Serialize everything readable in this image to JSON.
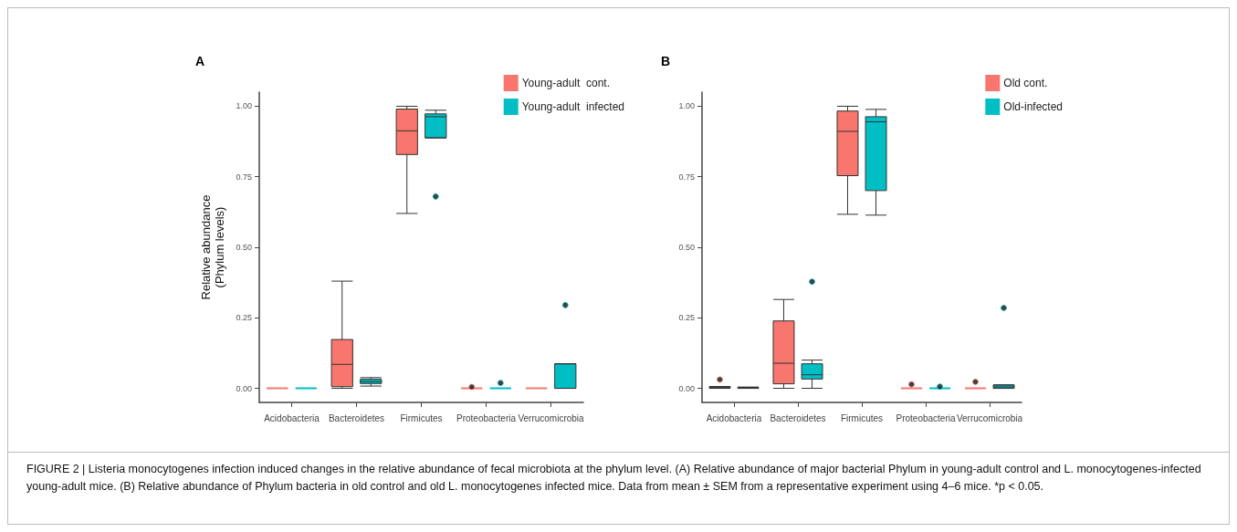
{
  "chart_data": [
    {
      "type": "box",
      "title": "A",
      "ylabel": "Relative abundance\n(Phylum levels)",
      "categories": [
        "Acidobacteria",
        "Bacteroidetes",
        "Firmicutes",
        "Proteobacteria",
        "Verrucomicrobia"
      ],
      "ylim": [
        -0.05,
        1.05
      ],
      "yticks": [
        {
          "value": 0,
          "label": "0.00"
        },
        {
          "value": 0.25,
          "label": "0.25"
        },
        {
          "value": 0.5,
          "label": "0.50"
        },
        {
          "value": 0.75,
          "label": "0.75"
        },
        {
          "value": 1,
          "label": "1.00"
        }
      ],
      "grid": false,
      "legend": "top right",
      "series": [
        {
          "name": "Young-adult  cont.",
          "color": "#f8766d",
          "boxes": [
            {
              "low": 0,
              "q1": 0,
              "median": 0,
              "q3": 0,
              "high": 0
            },
            {
              "low": 0,
              "q1": 0.006,
              "median": 0.085,
              "q3": 0.173,
              "high": 0.38
            },
            {
              "low": 0.62,
              "q1": 0.829,
              "median": 0.913,
              "q3": 0.99,
              "high": 1.0
            },
            {
              "low": 0,
              "q1": 0,
              "median": 0,
              "q3": 0,
              "high": 0,
              "outliers": [
                0.005
              ]
            },
            {
              "low": 0,
              "q1": 0,
              "median": 0,
              "q3": 0,
              "high": 0
            }
          ]
        },
        {
          "name": "Young-adult  infected",
          "color": "#00bfc4",
          "boxes": [
            {
              "low": 0,
              "q1": 0,
              "median": 0,
              "q3": 0,
              "high": 0
            },
            {
              "low": 0.008,
              "q1": 0.017,
              "median": 0.024,
              "q3": 0.032,
              "high": 0.038
            },
            {
              "low": 0.888,
              "q1": 0.888,
              "median": 0.963,
              "q3": 0.973,
              "high": 0.986,
              "outliers": [
                0.68
              ]
            },
            {
              "low": 0,
              "q1": 0,
              "median": 0,
              "q3": 0,
              "high": 0,
              "outliers": [
                0.019
              ]
            },
            {
              "low": 0,
              "q1": 0,
              "median": 0.087,
              "q3": 0.087,
              "high": 0.087,
              "outliers": [
                0.295
              ]
            }
          ]
        }
      ],
      "annotations": [
        "FIGURE 2 | Listeria monocytogenes infection induced changes in the relative abundance of fecal microbiota at the phylum level. (A) Relative abundance of major bacterial Phylum in young-adult control and L. monocytogenes-infected young-adult mice. (B) Relative abundance of Phylum bacteria in old control and old L. monocytogenes infected mice. Data from mean ± SEM from a representative experiment using 4–6 mice. *p < 0.05."
      ]
    },
    {
      "type": "box",
      "title": "B",
      "categories": [
        "Acidobacteria",
        "Bacteroidetes",
        "Firmicutes",
        "Proteobacteria",
        "Verrucomicrobia"
      ],
      "ylim": [
        -0.05,
        1.05
      ],
      "yticks": [
        {
          "value": 0,
          "label": "0.00"
        },
        {
          "value": 0.25,
          "label": "0.25"
        },
        {
          "value": 0.5,
          "label": "0.50"
        },
        {
          "value": 0.75,
          "label": "0.75"
        },
        {
          "value": 1,
          "label": "1.00"
        }
      ],
      "grid": false,
      "legend": "top right",
      "series": [
        {
          "name": "Old cont.",
          "color": "#f8766d",
          "boxes": [
            {
              "low": 0,
              "q1": 0,
              "median": 0.003,
              "q3": 0.006,
              "high": 0.006,
              "outliers": [
                0.031
              ]
            },
            {
              "low": 0,
              "q1": 0.016,
              "median": 0.089,
              "q3": 0.239,
              "high": 0.315
            },
            {
              "low": 0.617,
              "q1": 0.754,
              "median": 0.911,
              "q3": 0.983,
              "high": 1.0
            },
            {
              "low": 0,
              "q1": 0,
              "median": 0,
              "q3": 0,
              "high": 0,
              "outliers": [
                0.014
              ]
            },
            {
              "low": 0,
              "q1": 0,
              "median": 0,
              "q3": 0,
              "high": 0,
              "outliers": [
                0.023
              ]
            }
          ]
        },
        {
          "name": "Old-infected",
          "color": "#00bfc4",
          "boxes": [
            {
              "low": 0,
              "q1": 0,
              "median": 0.002,
              "q3": 0.004,
              "high": 0.004
            },
            {
              "low": 0,
              "q1": 0.033,
              "median": 0.048,
              "q3": 0.087,
              "high": 0.1,
              "outliers": [
                0.378
              ]
            },
            {
              "low": 0.614,
              "q1": 0.701,
              "median": 0.945,
              "q3": 0.963,
              "high": 0.989
            },
            {
              "low": 0,
              "q1": 0,
              "median": 0,
              "q3": 0,
              "high": 0,
              "outliers": [
                0.006
              ]
            },
            {
              "low": 0,
              "q1": 0,
              "median": 0.005,
              "q3": 0.012,
              "high": 0.012,
              "outliers": [
                0.285
              ]
            }
          ]
        }
      ]
    }
  ]
}
